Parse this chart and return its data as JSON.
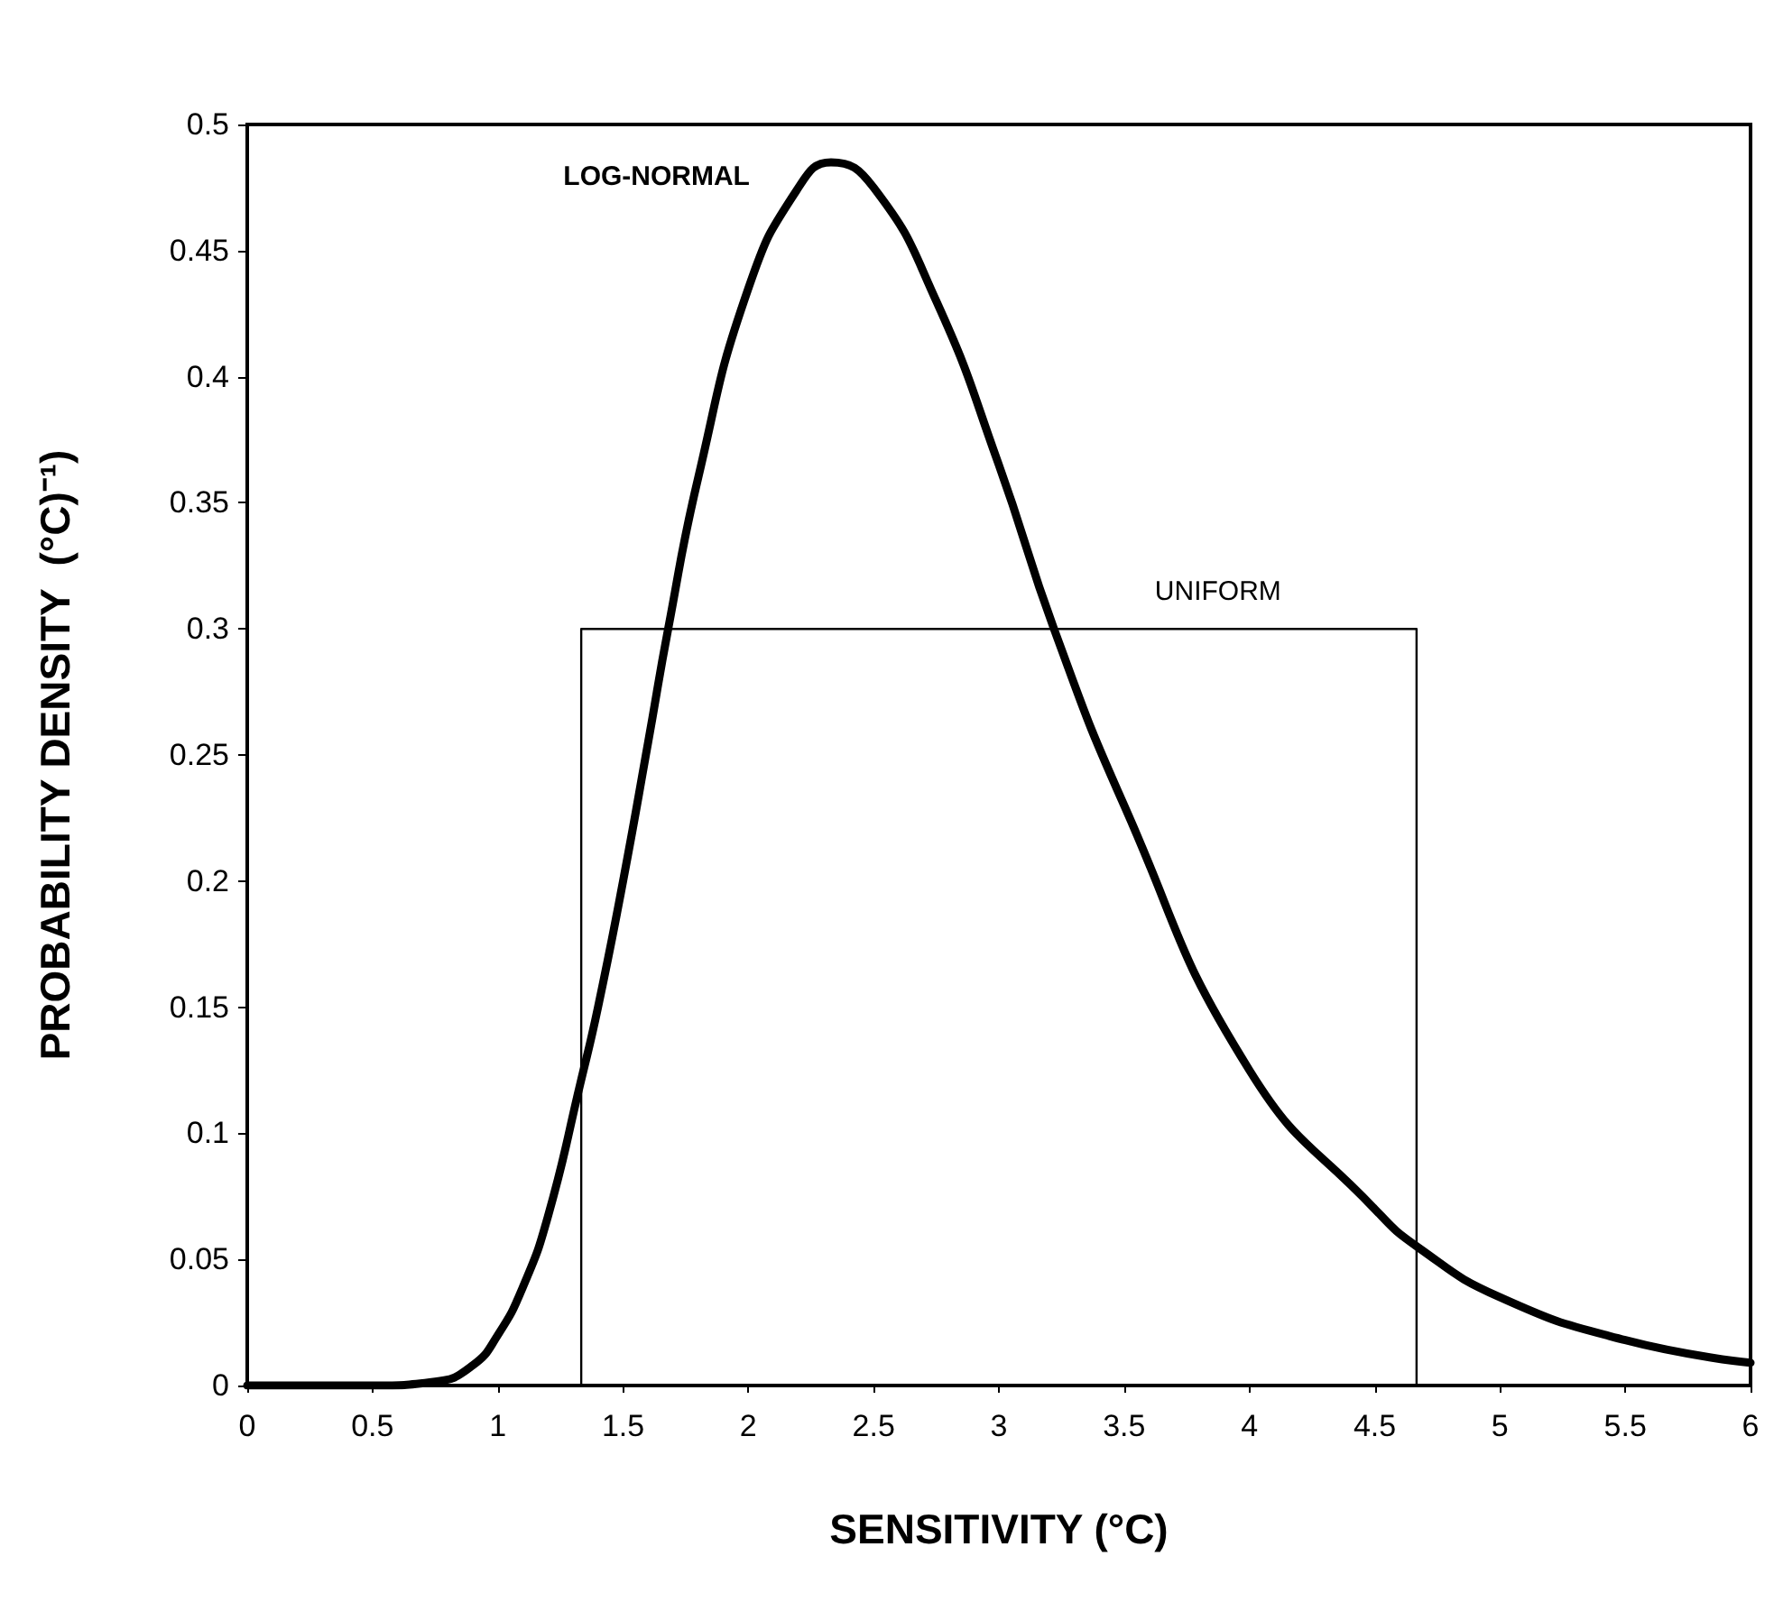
{
  "chart_data": {
    "type": "line",
    "xlabel": "SENSITIVITY (°C)",
    "ylabel": "PROBABILITY DENSITY  (°C)⁻¹)",
    "xlim": [
      0,
      6
    ],
    "xticks": [
      0,
      0.5,
      1,
      1.5,
      2,
      2.5,
      3,
      3.5,
      4,
      4.5,
      5,
      5.5,
      6
    ],
    "ylim": [
      0,
      0.5
    ],
    "yticks": [
      0,
      0.05,
      0.1,
      0.15,
      0.2,
      0.25,
      0.3,
      0.35,
      0.4,
      0.45,
      0.5
    ],
    "grid": false,
    "legend": false,
    "marker": "none",
    "line_style": "solid",
    "series": [
      {
        "name": "LOG-NORMAL",
        "color": "#000000",
        "x": [
          0,
          0.5,
          0.75,
          0.9,
          1.0,
          1.1,
          1.2,
          1.33,
          1.4,
          1.5,
          1.6,
          1.68,
          1.8,
          2.0,
          2.2,
          2.33,
          2.5,
          2.75,
          3.0,
          3.22,
          3.5,
          4.0,
          4.5,
          4.67,
          5.0,
          5.5,
          6.0
        ],
        "values": [
          0,
          0,
          0.0015,
          0.008,
          0.02,
          0.039,
          0.067,
          0.12,
          0.15,
          0.2,
          0.255,
          0.3,
          0.36,
          0.435,
          0.475,
          0.485,
          0.475,
          0.43,
          0.365,
          0.3,
          0.23,
          0.125,
          0.07,
          0.055,
          0.035,
          0.018,
          0.009
        ]
      },
      {
        "name": "UNIFORM",
        "color": "#000000",
        "x": [
          1.333,
          1.333,
          4.667,
          4.667
        ],
        "values": [
          0,
          0.3,
          0.3,
          0
        ]
      }
    ]
  }
}
